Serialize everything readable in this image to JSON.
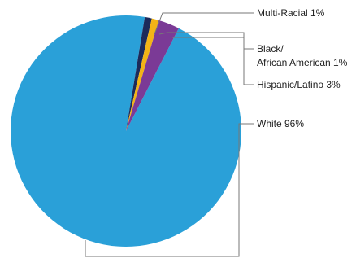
{
  "chart_data": {
    "type": "pie",
    "slices": [
      {
        "label": "White 96%",
        "value": 96,
        "color": "#2aa0d8"
      },
      {
        "label": "Multi-Racial 1%",
        "value": 1,
        "color": "#1c2a5a"
      },
      {
        "label": "Black/ African American 1%",
        "value": 1,
        "color": "#f2b416"
      },
      {
        "label": "Hispanic/Latino 3%",
        "value": 3,
        "color": "#7b3a96"
      }
    ],
    "labels": {
      "multi_racial": "Multi-Racial 1%",
      "black_line1": "Black/",
      "black_line2": "African American 1%",
      "hispanic": "Hispanic/Latino 3%",
      "white": "White 96%"
    },
    "legend": "none"
  }
}
